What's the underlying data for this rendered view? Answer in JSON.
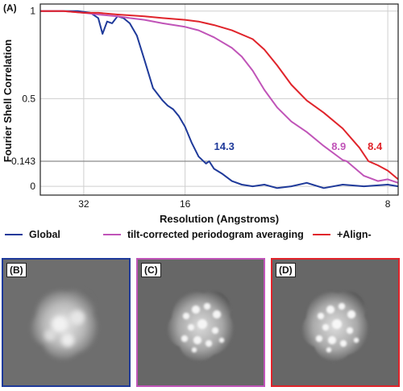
{
  "chart_data": {
    "type": "line",
    "panel_label": "(A)",
    "xlabel": "Resolution (Angstroms)",
    "ylabel": "Fourier Shell Correlation",
    "x_scale": "reciprocal",
    "x_ticks": [
      32,
      16,
      8
    ],
    "y_ticks": [
      0,
      0.143,
      0.5,
      1
    ],
    "y_tick_labels": [
      "0",
      "0.143",
      "0.5",
      "1"
    ],
    "xlim": [
      56,
      7.8
    ],
    "ylim": [
      -0.05,
      1.04
    ],
    "grid": true,
    "threshold_line": 0.143,
    "series": [
      {
        "name": "Global",
        "color": "#1f3a9a",
        "x": [
          56,
          48,
          40,
          34,
          30,
          28,
          27,
          26,
          25,
          24,
          23,
          22,
          21,
          20,
          19,
          18,
          17.5,
          17,
          16.5,
          16,
          15.5,
          15,
          14.5,
          14.3,
          14,
          13.5,
          13,
          12.5,
          12,
          11.5,
          11,
          10.5,
          10,
          9.5,
          9,
          8.5,
          8,
          7.8
        ],
        "y": [
          1.0,
          1.0,
          1.0,
          1.0,
          0.99,
          0.96,
          0.87,
          0.94,
          0.93,
          0.97,
          0.96,
          0.93,
          0.86,
          0.72,
          0.56,
          0.49,
          0.46,
          0.44,
          0.4,
          0.34,
          0.25,
          0.17,
          0.13,
          0.143,
          0.1,
          0.07,
          0.03,
          0.01,
          0.0,
          0.01,
          -0.01,
          0.0,
          0.02,
          -0.01,
          0.01,
          0.0,
          0.01,
          0.0
        ]
      },
      {
        "name": "tilt-corrected periodogram averaging",
        "color": "#c054b8",
        "x": [
          56,
          40,
          32,
          28,
          24,
          22,
          20,
          18,
          16,
          15,
          14,
          13,
          12.5,
          12,
          11.5,
          11,
          10.5,
          10,
          9.5,
          9,
          8.9,
          8.5,
          8.2,
          8,
          7.8
        ],
        "y": [
          1.0,
          1.0,
          0.99,
          0.98,
          0.97,
          0.96,
          0.95,
          0.93,
          0.91,
          0.89,
          0.85,
          0.79,
          0.74,
          0.66,
          0.55,
          0.45,
          0.37,
          0.31,
          0.23,
          0.15,
          0.143,
          0.06,
          0.03,
          0.04,
          0.02
        ]
      },
      {
        "name": "+Align-",
        "color": "#e0242b",
        "x": [
          56,
          40,
          32,
          28,
          24,
          20,
          18,
          16,
          15,
          14,
          13,
          12,
          11.5,
          11,
          10.5,
          10,
          9.5,
          9,
          8.6,
          8.4,
          8.2,
          8,
          7.8
        ],
        "y": [
          1.0,
          1.0,
          0.99,
          0.99,
          0.98,
          0.97,
          0.96,
          0.95,
          0.94,
          0.92,
          0.89,
          0.84,
          0.78,
          0.69,
          0.58,
          0.49,
          0.42,
          0.33,
          0.22,
          0.143,
          0.12,
          0.09,
          0.04
        ]
      }
    ],
    "annotations": [
      {
        "text": "14.3",
        "color": "#1f3a9a",
        "x": 14.3,
        "y": 0.143
      },
      {
        "text": "8.9",
        "color": "#c054b8",
        "x": 8.9,
        "y": 0.143
      },
      {
        "text": "8.4",
        "color": "#e0242b",
        "x": 8.4,
        "y": 0.143
      }
    ]
  },
  "legend": [
    {
      "label": "Global",
      "color": "#1f3a9a"
    },
    {
      "label": "tilt-corrected periodogram averaging",
      "color": "#c054b8"
    },
    {
      "label": "+Align-",
      "color": "#e0242b"
    }
  ],
  "panels": [
    {
      "label": "(B)",
      "border_color": "#1f3a9a"
    },
    {
      "label": "(C)",
      "border_color": "#c054b8"
    },
    {
      "label": "(D)",
      "border_color": "#e0242b"
    }
  ]
}
